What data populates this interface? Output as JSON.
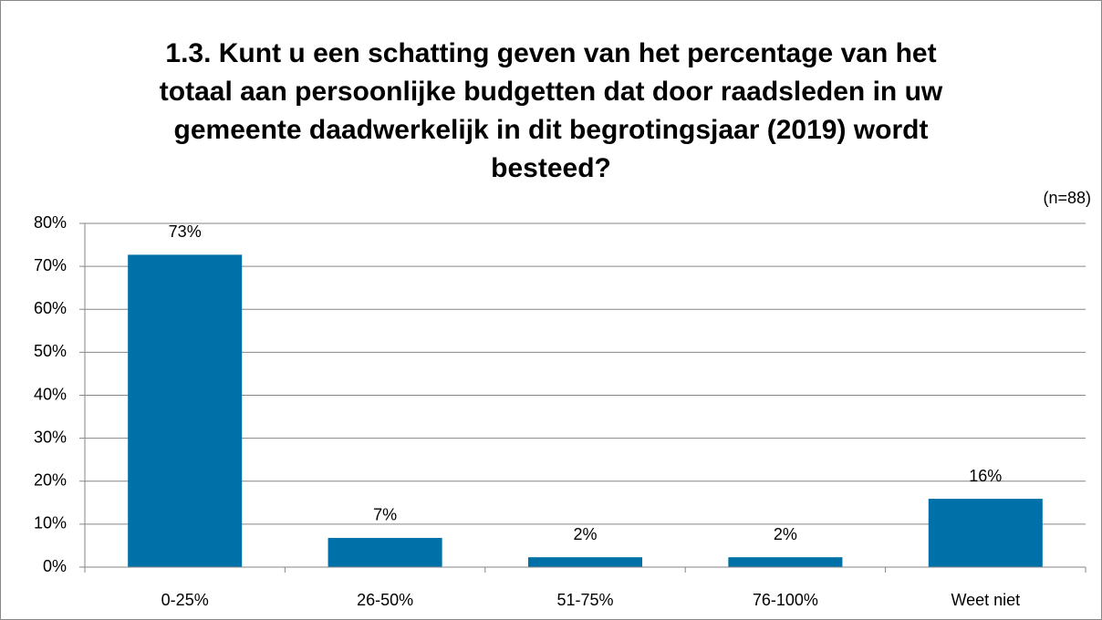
{
  "chart_data": {
    "type": "bar",
    "title": [
      "1.3. Kunt u een schatting geven van het percentage van het",
      "totaal aan persoonlijke budgetten dat door raadsleden in uw",
      "gemeente daadwerkelijk in dit begrotingsjaar (2019) wordt",
      "besteed?"
    ],
    "annotation": "(n=88)",
    "categories": [
      "0-25%",
      "26-50%",
      "51-75%",
      "76-100%",
      "Weet niet"
    ],
    "values": [
      72.7,
      6.8,
      2.3,
      2.3,
      15.9
    ],
    "value_labels": [
      "73%",
      "7%",
      "2%",
      "2%",
      "16%"
    ],
    "color": "#0070a8",
    "ylim": [
      0,
      80
    ],
    "yticks": [
      {
        "value": 0,
        "label": "0%"
      },
      {
        "value": 10,
        "label": "10%"
      },
      {
        "value": 20,
        "label": "20%"
      },
      {
        "value": 30,
        "label": "30%"
      },
      {
        "value": 40,
        "label": "40%"
      },
      {
        "value": 50,
        "label": "50%"
      },
      {
        "value": 60,
        "label": "60%"
      },
      {
        "value": 70,
        "label": "70%"
      },
      {
        "value": 80,
        "label": "80%"
      }
    ],
    "grid": true
  }
}
